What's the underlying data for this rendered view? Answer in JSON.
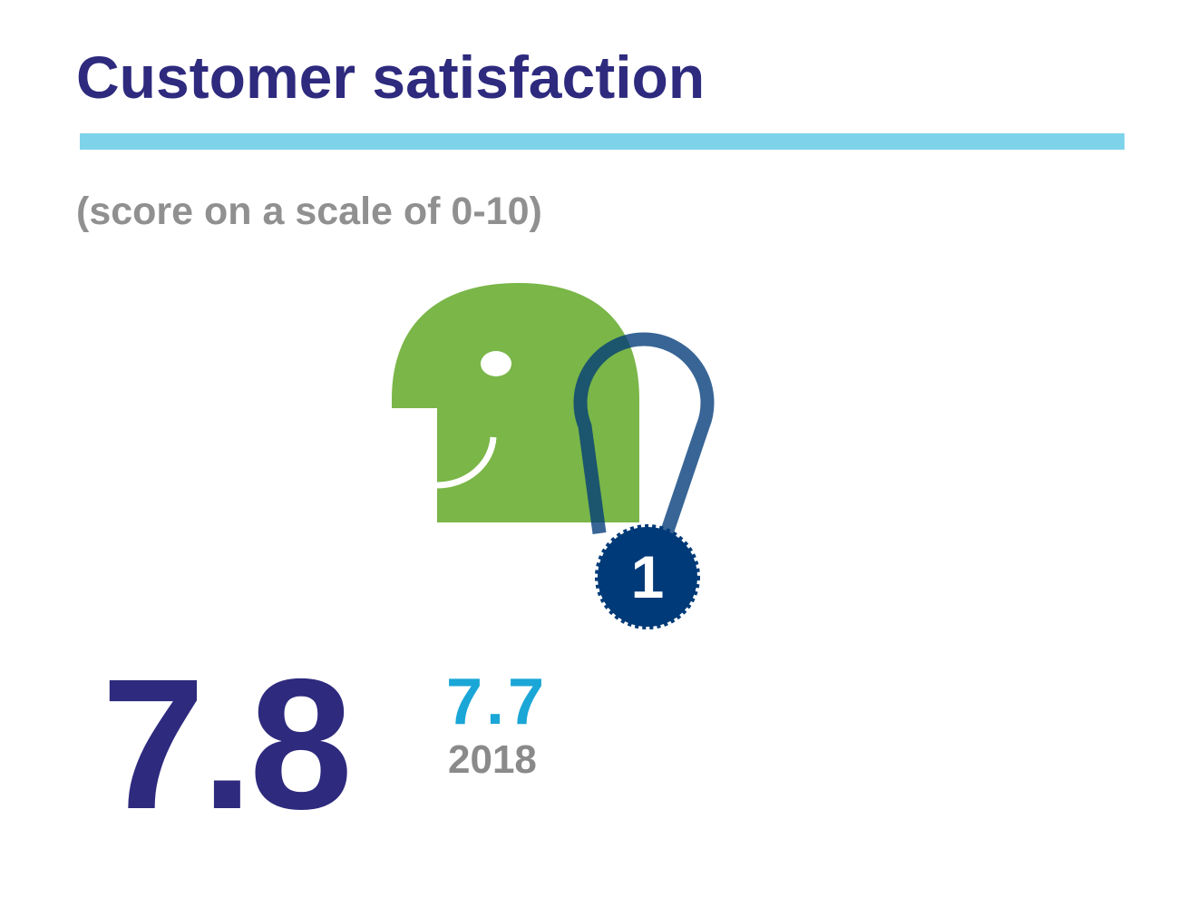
{
  "header": {
    "title": "Customer satisfaction",
    "subtitle": "(score on a scale of 0-10)"
  },
  "illustration": {
    "head_icon": "smiling-head-icon",
    "medal_icon": "first-place-medal-icon",
    "medal_label": "1"
  },
  "scores": {
    "current": "7.8",
    "previous": "7.7",
    "previous_year": "2018"
  },
  "colors": {
    "title": "#2e2a7e",
    "rule": "#7ed3ea",
    "subtitle": "#909090",
    "head": "#7ab648",
    "medal": "#003a78",
    "current_score": "#2e2a7e",
    "previous_score": "#1aa6d6",
    "previous_year": "#8a8a8a"
  }
}
